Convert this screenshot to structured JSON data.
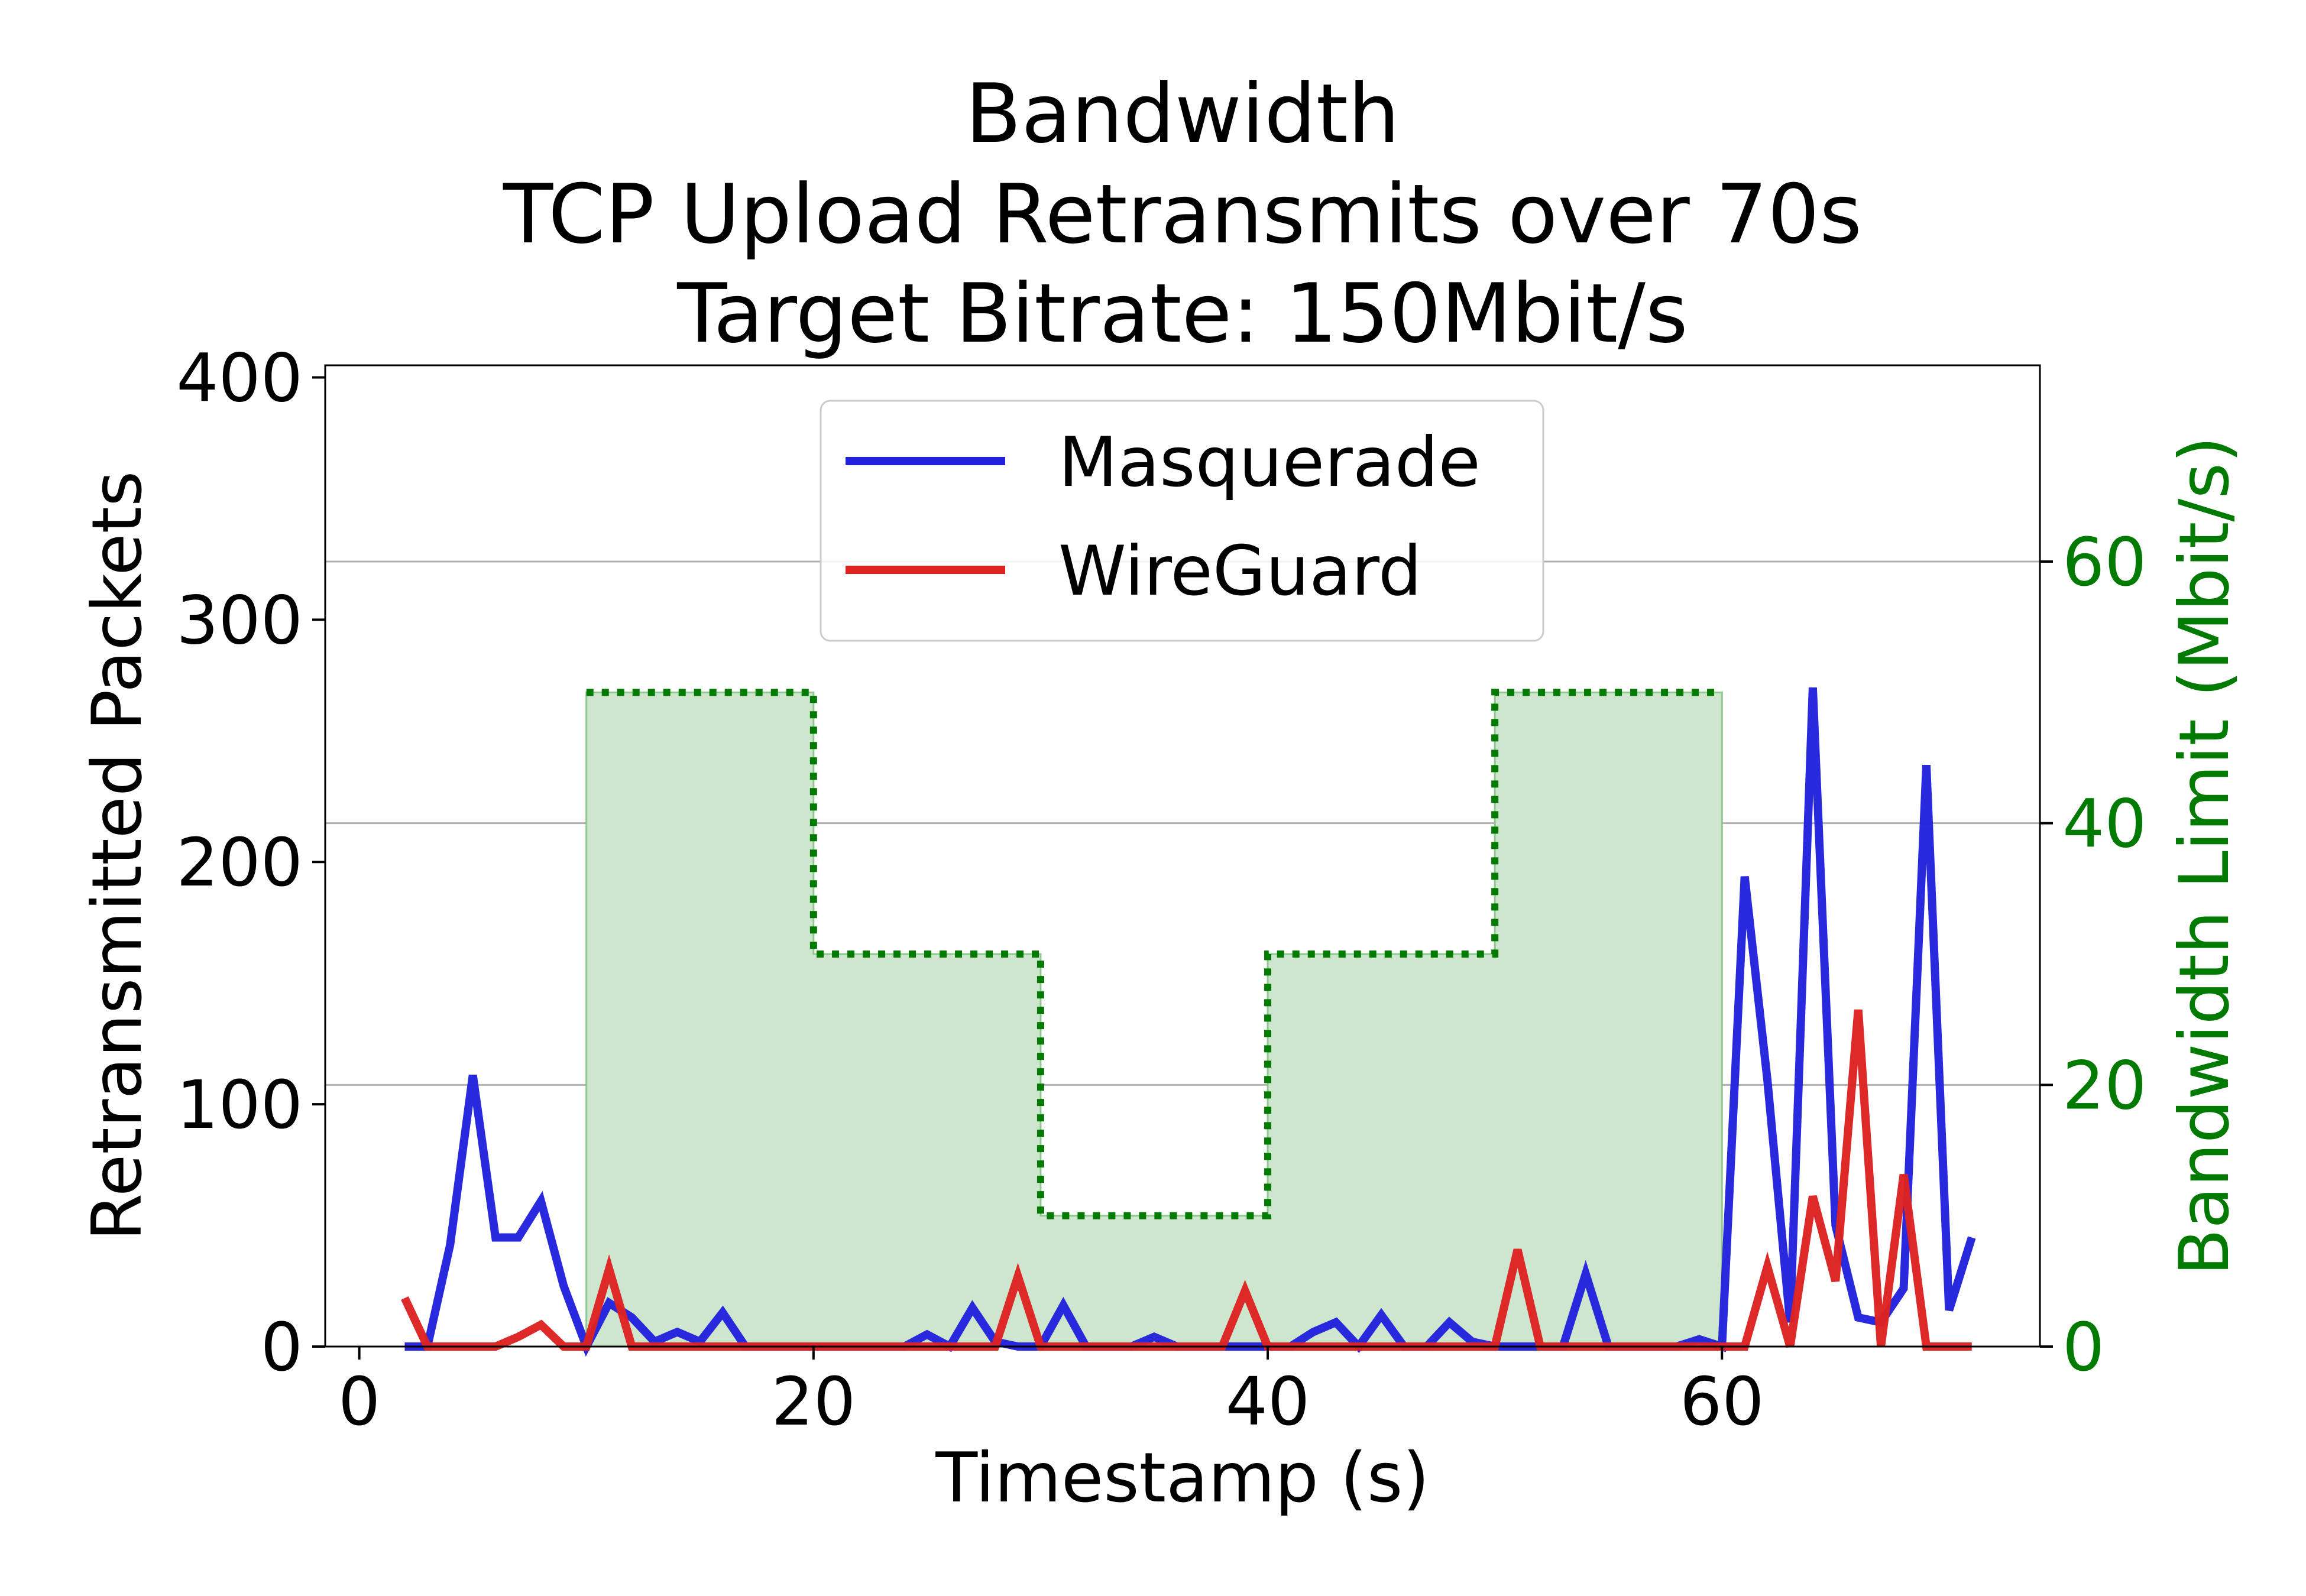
{
  "chart_data": {
    "type": "line",
    "title": [
      "Bandwidth",
      "TCP Upload Retransmits over 70s",
      "Target Bitrate: 150Mbit/s"
    ],
    "xlabel": "Timestamp (s)",
    "ylabel": "Retransmitted Packets",
    "y2label": "Bandwidth Limit (Mbit/s)",
    "xlim": [
      -1.5,
      74
    ],
    "ylim": [
      0,
      405
    ],
    "y2lim": [
      0,
      75
    ],
    "xticks": [
      0,
      20,
      40,
      60
    ],
    "yticks": [
      0,
      100,
      200,
      300,
      400
    ],
    "y2ticks": [
      0,
      20,
      40,
      60
    ],
    "grid": "horizontal lines at right-axis ticks",
    "legend_position": "upper center",
    "colors": {
      "Masquerade": "#2222dd",
      "WireGuard": "#dd2222",
      "bandwidth_line": "#007a00",
      "bandwidth_fill": "#cde6cd",
      "right_axis": "#007a00",
      "grid": "#b0b0b0"
    },
    "series": [
      {
        "name": "Masquerade",
        "x": [
          2,
          3,
          4,
          5,
          6,
          7,
          8,
          9,
          10,
          11,
          12,
          13,
          14,
          15,
          16,
          17,
          18,
          19,
          20,
          21,
          22,
          23,
          24,
          25,
          26,
          27,
          28,
          29,
          30,
          31,
          32,
          33,
          34,
          35,
          36,
          37,
          38,
          39,
          40,
          41,
          42,
          43,
          44,
          45,
          46,
          47,
          48,
          49,
          50,
          51,
          52,
          53,
          54,
          55,
          56,
          57,
          58,
          59,
          60,
          61,
          62,
          63,
          64,
          65,
          66,
          67,
          68,
          69,
          70,
          71
        ],
        "values": [
          0,
          0,
          42,
          112,
          45,
          45,
          60,
          25,
          0,
          18,
          12,
          2,
          6,
          2,
          14,
          0,
          0,
          0,
          0,
          0,
          0,
          0,
          0,
          5,
          0,
          16,
          2,
          0,
          0,
          17,
          0,
          0,
          0,
          4,
          0,
          0,
          0,
          0,
          0,
          0,
          6,
          10,
          0,
          13,
          0,
          0,
          10,
          2,
          0,
          0,
          0,
          0,
          30,
          0,
          0,
          0,
          0,
          3,
          0,
          194,
          110,
          10,
          272,
          50,
          12,
          10,
          24,
          240,
          15,
          45
        ]
      },
      {
        "name": "WireGuard",
        "x": [
          2,
          3,
          4,
          5,
          6,
          7,
          8,
          9,
          10,
          11,
          12,
          13,
          14,
          15,
          16,
          17,
          18,
          19,
          20,
          21,
          22,
          23,
          24,
          25,
          26,
          27,
          28,
          29,
          30,
          31,
          32,
          33,
          34,
          35,
          36,
          37,
          38,
          39,
          40,
          41,
          42,
          43,
          44,
          45,
          46,
          47,
          48,
          49,
          50,
          51,
          52,
          53,
          54,
          55,
          56,
          57,
          58,
          59,
          60,
          61,
          62,
          63,
          64,
          65,
          66,
          67,
          68,
          69,
          70,
          71
        ],
        "values": [
          20,
          0,
          0,
          0,
          0,
          4,
          9,
          0,
          0,
          32,
          0,
          0,
          0,
          0,
          0,
          0,
          0,
          0,
          0,
          0,
          0,
          0,
          0,
          0,
          0,
          0,
          0,
          29,
          0,
          0,
          0,
          0,
          0,
          0,
          0,
          0,
          0,
          23,
          0,
          0,
          0,
          0,
          0,
          0,
          0,
          0,
          0,
          0,
          0,
          40,
          0,
          0,
          0,
          0,
          0,
          0,
          0,
          0,
          0,
          0,
          33,
          0,
          62,
          27,
          139,
          0,
          71,
          0,
          0,
          0
        ]
      },
      {
        "name": "Bandwidth Limit",
        "axis": "right",
        "step": true,
        "x": [
          10,
          20,
          20,
          30,
          30,
          40,
          40,
          50,
          50,
          60
        ],
        "values": [
          50,
          50,
          30,
          30,
          10,
          10,
          30,
          30,
          50,
          50
        ]
      }
    ]
  }
}
